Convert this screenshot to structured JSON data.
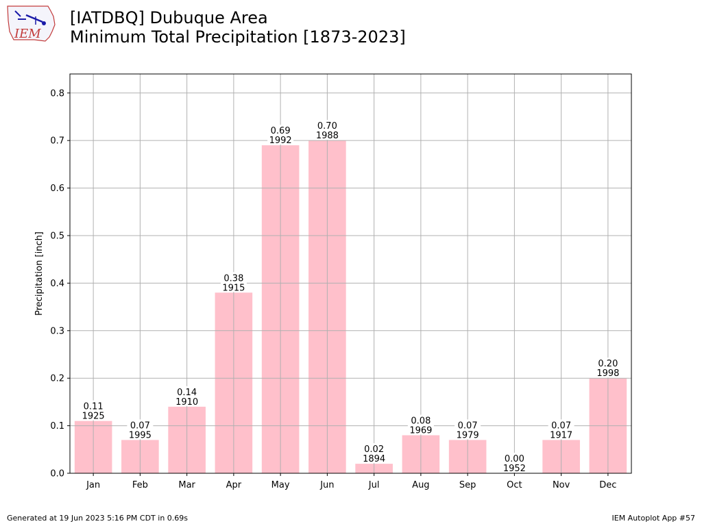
{
  "header": {
    "logo_text": "IEM",
    "title_line1": "[IATDBQ] Dubuque Area",
    "title_line2": "Minimum Total Precipitation [1873-2023]"
  },
  "chart_data": {
    "type": "bar",
    "categories": [
      "Jan",
      "Feb",
      "Mar",
      "Apr",
      "May",
      "Jun",
      "Jul",
      "Aug",
      "Sep",
      "Oct",
      "Nov",
      "Dec"
    ],
    "values": [
      0.11,
      0.07,
      0.14,
      0.38,
      0.69,
      0.7,
      0.02,
      0.08,
      0.07,
      0.0,
      0.07,
      0.2
    ],
    "value_labels": [
      "0.11",
      "0.07",
      "0.14",
      "0.38",
      "0.69",
      "0.70",
      "0.02",
      "0.08",
      "0.07",
      "0.00",
      "0.07",
      "0.20"
    ],
    "year_labels": [
      "1925",
      "1995",
      "1910",
      "1915",
      "1992",
      "1988",
      "1894",
      "1969",
      "1979",
      "1952",
      "1917",
      "1998"
    ],
    "title": "",
    "xlabel": "",
    "ylabel": "Precipitation [inch]",
    "ylim": [
      0,
      0.84
    ],
    "yticks": [
      0.0,
      0.1,
      0.2,
      0.3,
      0.4,
      0.5,
      0.6,
      0.7,
      0.8
    ],
    "ytick_labels": [
      "0.0",
      "0.1",
      "0.2",
      "0.3",
      "0.4",
      "0.5",
      "0.6",
      "0.7",
      "0.8"
    ],
    "grid": true,
    "bar_color": "#ffc0cb"
  },
  "footer": {
    "left": "Generated at 19 Jun 2023 5:16 PM CDT in 0.69s",
    "right": "IEM Autoplot App #57"
  }
}
